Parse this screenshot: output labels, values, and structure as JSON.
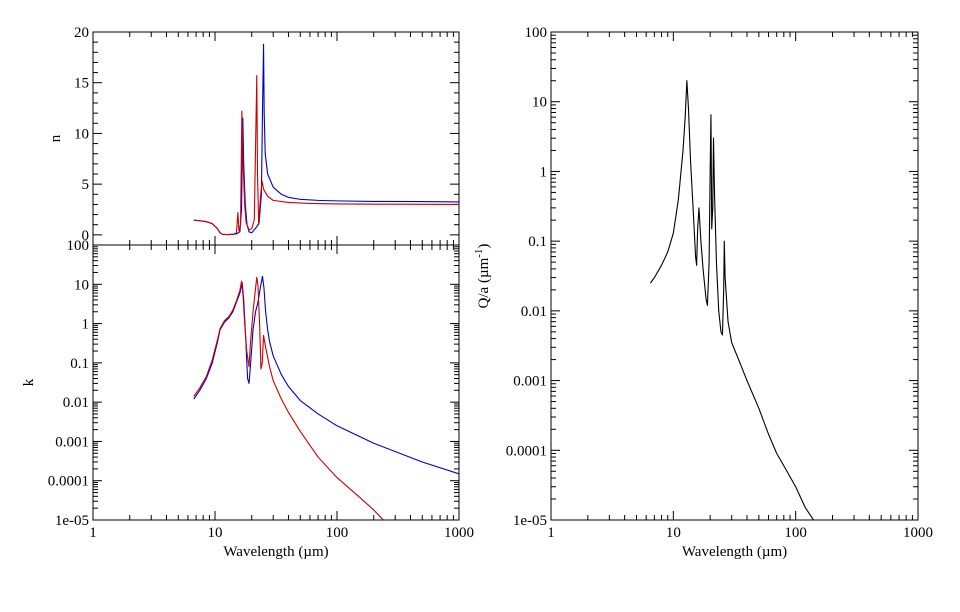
{
  "chart_data": [
    {
      "type": "line",
      "panel": "n",
      "xlabel": "",
      "ylabel": "n",
      "xscale": "log",
      "yscale": "linear",
      "xlim": [
        1,
        1000
      ],
      "ylim": [
        -1,
        20
      ],
      "yticks": [
        0,
        5,
        10,
        15,
        20
      ],
      "ytick_labels": [
        "0",
        "5",
        "10",
        "15",
        "20"
      ],
      "xticks": [
        1,
        10,
        100,
        1000
      ],
      "xtick_labels": [],
      "grid": false,
      "series": [
        {
          "color": "#0000cc",
          "points": [
            [
              6.7,
              1.45
            ],
            [
              7.5,
              1.4
            ],
            [
              8.5,
              1.3
            ],
            [
              9.5,
              1.1
            ],
            [
              10.5,
              0.6
            ],
            [
              11,
              0.2
            ],
            [
              11.5,
              0.05
            ],
            [
              12.5,
              0.03
            ],
            [
              14,
              0.05
            ],
            [
              15,
              0.1
            ],
            [
              16,
              0.3
            ],
            [
              16.5,
              2.5
            ],
            [
              16.9,
              11.5
            ],
            [
              17.2,
              7
            ],
            [
              17.7,
              3
            ],
            [
              18.3,
              1
            ],
            [
              19,
              0.3
            ],
            [
              20,
              0.2
            ],
            [
              21,
              0.5
            ],
            [
              22,
              0.8
            ],
            [
              23,
              1.2
            ],
            [
              24,
              4
            ],
            [
              24.5,
              12
            ],
            [
              25,
              18.8
            ],
            [
              25.3,
              12
            ],
            [
              25.8,
              8
            ],
            [
              27,
              6
            ],
            [
              30,
              4.7
            ],
            [
              35,
              4
            ],
            [
              40,
              3.7
            ],
            [
              50,
              3.5
            ],
            [
              70,
              3.4
            ],
            [
              100,
              3.35
            ],
            [
              200,
              3.3
            ],
            [
              500,
              3.28
            ],
            [
              1000,
              3.25
            ]
          ]
        },
        {
          "color": "#cc0000",
          "points": [
            [
              6.7,
              1.45
            ],
            [
              7.5,
              1.4
            ],
            [
              8.5,
              1.3
            ],
            [
              9.5,
              1.1
            ],
            [
              10.5,
              0.6
            ],
            [
              11,
              0.2
            ],
            [
              11.5,
              0.05
            ],
            [
              12.5,
              0.03
            ],
            [
              14,
              0.05
            ],
            [
              15,
              0.2
            ],
            [
              15.4,
              2.2
            ],
            [
              15.7,
              0.4
            ],
            [
              16.2,
              1
            ],
            [
              16.6,
              12.2
            ],
            [
              17,
              7
            ],
            [
              17.5,
              3
            ],
            [
              18,
              1.2
            ],
            [
              19,
              0.5
            ],
            [
              20,
              0.6
            ],
            [
              21,
              1.5
            ],
            [
              21.7,
              11.5
            ],
            [
              22,
              15.7
            ],
            [
              22.3,
              6
            ],
            [
              22.8,
              1
            ],
            [
              23.5,
              3.5
            ],
            [
              24.3,
              5.3
            ],
            [
              25,
              4.5
            ],
            [
              27,
              3.8
            ],
            [
              30,
              3.4
            ],
            [
              40,
              3.2
            ],
            [
              60,
              3.1
            ],
            [
              100,
              3.05
            ],
            [
              300,
              3.02
            ],
            [
              1000,
              3.0
            ]
          ]
        }
      ]
    },
    {
      "type": "line",
      "panel": "k",
      "xlabel": "Wavelength (µm)",
      "ylabel": "k",
      "xscale": "log",
      "yscale": "log",
      "xlim": [
        1,
        1000
      ],
      "ylim": [
        1e-05,
        100
      ],
      "yticks": [
        1e-05,
        0.0001,
        0.001,
        0.01,
        0.1,
        1,
        10,
        100
      ],
      "ytick_labels": [
        "1e-05",
        "0.0001",
        "0.001",
        "0.01",
        "0.1",
        "1",
        "10",
        "100"
      ],
      "xticks": [
        1,
        10,
        100,
        1000
      ],
      "xtick_labels": [
        "1",
        "10",
        "100",
        "1000"
      ],
      "grid": false,
      "series": [
        {
          "color": "#0000cc",
          "points": [
            [
              6.7,
              0.012
            ],
            [
              7.5,
              0.02
            ],
            [
              8.5,
              0.04
            ],
            [
              9.5,
              0.1
            ],
            [
              10.5,
              0.35
            ],
            [
              11,
              0.7
            ],
            [
              12,
              1.1
            ],
            [
              13,
              1.4
            ],
            [
              14,
              2
            ],
            [
              15,
              3.5
            ],
            [
              16,
              6
            ],
            [
              16.7,
              11
            ],
            [
              17.2,
              4
            ],
            [
              17.8,
              0.5
            ],
            [
              18.5,
              0.04
            ],
            [
              19,
              0.03
            ],
            [
              19.5,
              0.08
            ],
            [
              20.5,
              0.7
            ],
            [
              21.5,
              2
            ],
            [
              22.5,
              3.5
            ],
            [
              23.5,
              8
            ],
            [
              24.5,
              16
            ],
            [
              25.2,
              8
            ],
            [
              26,
              2
            ],
            [
              27,
              0.7
            ],
            [
              28,
              0.35
            ],
            [
              30,
              0.15
            ],
            [
              35,
              0.05
            ],
            [
              40,
              0.025
            ],
            [
              50,
              0.011
            ],
            [
              70,
              0.005
            ],
            [
              100,
              0.0025
            ],
            [
              200,
              0.0009
            ],
            [
              500,
              0.0003
            ],
            [
              1000,
              0.00015
            ]
          ]
        },
        {
          "color": "#cc0000",
          "points": [
            [
              6.7,
              0.014
            ],
            [
              7.5,
              0.023
            ],
            [
              8.5,
              0.045
            ],
            [
              9.5,
              0.12
            ],
            [
              10.5,
              0.4
            ],
            [
              11,
              0.75
            ],
            [
              12,
              1.2
            ],
            [
              13,
              1.5
            ],
            [
              14,
              2.2
            ],
            [
              15,
              3.8
            ],
            [
              16,
              7
            ],
            [
              16.5,
              12
            ],
            [
              17,
              5
            ],
            [
              17.5,
              1
            ],
            [
              18.2,
              0.2
            ],
            [
              19,
              0.08
            ],
            [
              19.5,
              0.3
            ],
            [
              20.5,
              2
            ],
            [
              21.5,
              8
            ],
            [
              22,
              15
            ],
            [
              22.5,
              9
            ],
            [
              23.2,
              1
            ],
            [
              23.8,
              0.07
            ],
            [
              24.4,
              0.1
            ],
            [
              25,
              0.5
            ],
            [
              26,
              0.25
            ],
            [
              28,
              0.08
            ],
            [
              30,
              0.035
            ],
            [
              35,
              0.012
            ],
            [
              40,
              0.0055
            ],
            [
              50,
              0.0018
            ],
            [
              70,
              0.0004
            ],
            [
              100,
              0.00012
            ],
            [
              150,
              4e-05
            ],
            [
              200,
              1.8e-05
            ],
            [
              240,
              1e-05
            ]
          ]
        }
      ]
    },
    {
      "type": "line",
      "panel": "Q",
      "xlabel": "Wavelength (µm)",
      "ylabel": "Q/a (µm",
      "ylabel_sup": "-1",
      "ylabel_tail": ")",
      "xscale": "log",
      "yscale": "log",
      "xlim": [
        1,
        1000
      ],
      "ylim": [
        1e-05,
        100
      ],
      "yticks": [
        1e-05,
        0.0001,
        0.001,
        0.01,
        0.1,
        1,
        10,
        100
      ],
      "ytick_labels": [
        "1e-05",
        "0.0001",
        "0.001",
        "0.01",
        "0.1",
        "1",
        "10",
        "100"
      ],
      "xticks": [
        1,
        10,
        100,
        1000
      ],
      "xtick_labels": [
        "1",
        "10",
        "100",
        "1000"
      ],
      "grid": false,
      "series": [
        {
          "color": "#000000",
          "points": [
            [
              6.5,
              0.025
            ],
            [
              7,
              0.03
            ],
            [
              8,
              0.045
            ],
            [
              9,
              0.07
            ],
            [
              10,
              0.13
            ],
            [
              11,
              0.4
            ],
            [
              12,
              2
            ],
            [
              12.5,
              6
            ],
            [
              12.9,
              20
            ],
            [
              13.3,
              8
            ],
            [
              13.8,
              1.5
            ],
            [
              14.5,
              0.3
            ],
            [
              15.2,
              0.06
            ],
            [
              15.5,
              0.045
            ],
            [
              15.8,
              0.15
            ],
            [
              16.2,
              0.3
            ],
            [
              16.8,
              0.1
            ],
            [
              17.5,
              0.04
            ],
            [
              18.5,
              0.015
            ],
            [
              19,
              0.012
            ],
            [
              19.6,
              0.05
            ],
            [
              20,
              1
            ],
            [
              20.3,
              6.5
            ],
            [
              20.6,
              0.15
            ],
            [
              21,
              0.3
            ],
            [
              21.3,
              3
            ],
            [
              21.7,
              0.5
            ],
            [
              22.5,
              0.05
            ],
            [
              23.5,
              0.01
            ],
            [
              24.5,
              0.005
            ],
            [
              25.2,
              0.0045
            ],
            [
              25.8,
              0.02
            ],
            [
              26.1,
              0.1
            ],
            [
              26.5,
              0.03
            ],
            [
              28,
              0.007
            ],
            [
              30,
              0.0035
            ],
            [
              35,
              0.0018
            ],
            [
              40,
              0.001
            ],
            [
              50,
              0.0004
            ],
            [
              60,
              0.00017
            ],
            [
              70,
              9e-05
            ],
            [
              80,
              6e-05
            ],
            [
              100,
              3e-05
            ],
            [
              120,
              1.5e-05
            ],
            [
              140,
              1e-05
            ]
          ]
        }
      ]
    }
  ]
}
